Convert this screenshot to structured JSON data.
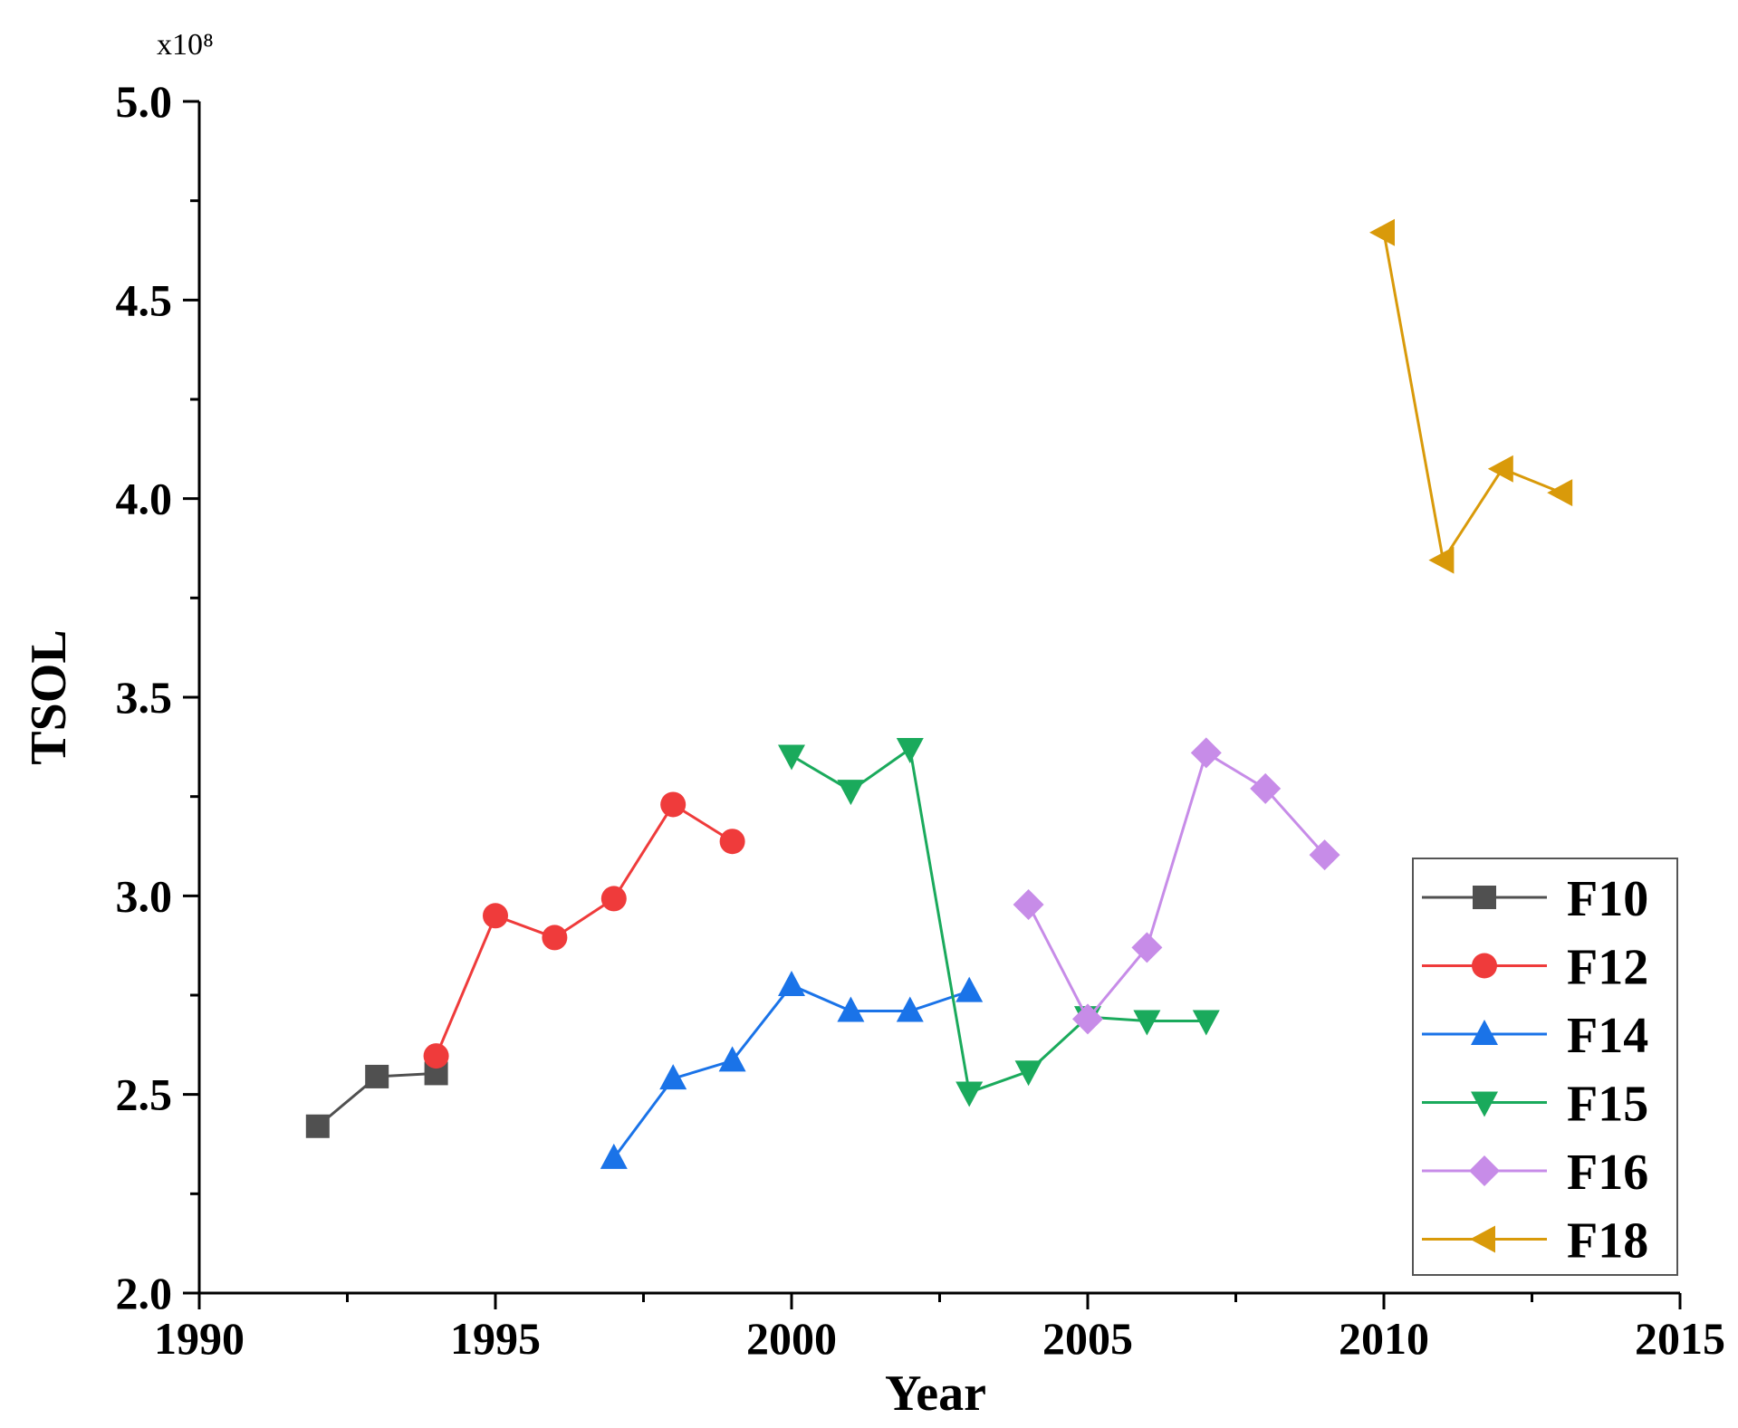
{
  "chart_data": {
    "type": "line",
    "title": "",
    "xlabel": "Year",
    "ylabel": "TSOL",
    "y_multiplier": "x10⁸",
    "xlim": [
      1990,
      2015
    ],
    "ylim": [
      2.0,
      5.0
    ],
    "x_ticks": [
      1990,
      1995,
      2000,
      2005,
      2010,
      2015
    ],
    "y_ticks": [
      2.0,
      2.5,
      3.0,
      3.5,
      4.0,
      4.5,
      5.0
    ],
    "y_tick_labels": [
      "2.0",
      "2.5",
      "3.0",
      "3.5",
      "4.0",
      "4.5",
      "5.0"
    ],
    "grid": false,
    "legend_position": "bottom-right",
    "series": [
      {
        "name": "F10",
        "marker": "square",
        "color": "#505050",
        "x": [
          1992,
          1993,
          1994
        ],
        "values": [
          2.42,
          2.545,
          2.553
        ]
      },
      {
        "name": "F12",
        "marker": "circle",
        "color": "#ef3b3b",
        "x": [
          1994,
          1995,
          1996,
          1997,
          1998,
          1999
        ],
        "values": [
          2.597,
          2.95,
          2.895,
          2.993,
          3.23,
          3.137
        ]
      },
      {
        "name": "F14",
        "marker": "triangle-up",
        "color": "#1a73e8",
        "x": [
          1997,
          1998,
          1999,
          2000,
          2001,
          2002,
          2003
        ],
        "values": [
          2.34,
          2.54,
          2.585,
          2.775,
          2.71,
          2.71,
          2.76
        ]
      },
      {
        "name": "F15",
        "marker": "triangle-down",
        "color": "#1aaa5c",
        "x": [
          2000,
          2001,
          2002,
          2003,
          2004,
          2005,
          2006,
          2007
        ],
        "values": [
          3.353,
          3.265,
          3.37,
          2.505,
          2.558,
          2.695,
          2.685,
          2.685
        ]
      },
      {
        "name": "F16",
        "marker": "diamond",
        "color": "#c78ce8",
        "x": [
          2004,
          2005,
          2006,
          2007,
          2008,
          2009
        ],
        "values": [
          2.978,
          2.69,
          2.87,
          3.36,
          3.27,
          3.103
        ]
      },
      {
        "name": "F18",
        "marker": "triangle-left",
        "color": "#d99a0a",
        "x": [
          2010,
          2011,
          2012,
          2013
        ],
        "values": [
          4.67,
          3.845,
          4.075,
          4.015
        ]
      }
    ]
  }
}
